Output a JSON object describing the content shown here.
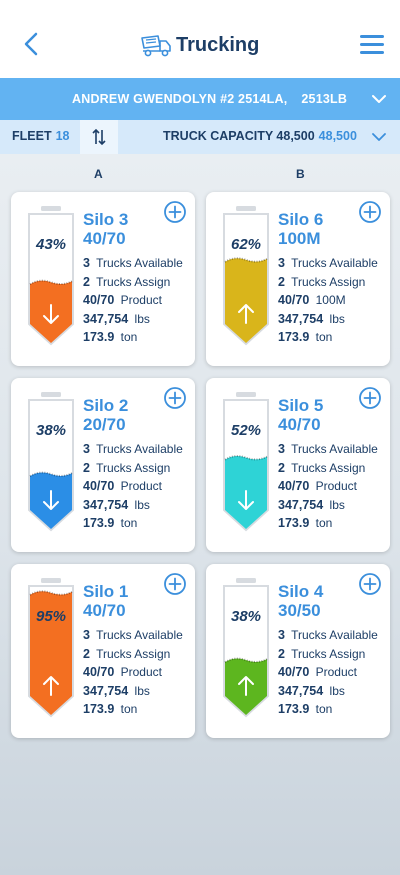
{
  "header": {
    "title": "Trucking"
  },
  "location": {
    "name": "ANDREW GWENDOLYN #2 2514LA,",
    "code": "2513LB"
  },
  "fleet": {
    "label": "FLEET",
    "count": "18"
  },
  "capacity": {
    "label": "TRUCK CAPACITY 48,500",
    "value": "48,500"
  },
  "columns": {
    "a": "A",
    "b": "B"
  },
  "silos": [
    {
      "name": "Silo 3",
      "fill": "40/70",
      "percent": "43%",
      "level": 0.43,
      "color": "#f36f21",
      "direction": "down",
      "trucks_available": "3",
      "trucks_available_label": "Trucks Available",
      "trucks_assign": "2",
      "trucks_assign_label": "Trucks Assign",
      "product": "40/70",
      "product_label": "Product",
      "lbs": "347,754",
      "lbs_unit": "lbs",
      "ton": "173.9",
      "ton_unit": "ton"
    },
    {
      "name": "Silo 6",
      "fill": "100M",
      "percent": "62%",
      "level": 0.62,
      "color": "#d9b51b",
      "direction": "up",
      "trucks_available": "3",
      "trucks_available_label": "Trucks Available",
      "trucks_assign": "2",
      "trucks_assign_label": "Trucks Assign",
      "product": "40/70",
      "product_label": "100M",
      "lbs": "347,754",
      "lbs_unit": "lbs",
      "ton": "173.9",
      "ton_unit": "ton"
    },
    {
      "name": "Silo 2",
      "fill": "20/70",
      "percent": "38%",
      "level": 0.38,
      "color": "#2b8ee6",
      "direction": "down",
      "trucks_available": "3",
      "trucks_available_label": "Trucks Available",
      "trucks_assign": "2",
      "trucks_assign_label": "Trucks Assign",
      "product": "40/70",
      "product_label": "Product",
      "lbs": "347,754",
      "lbs_unit": "lbs",
      "ton": "173.9",
      "ton_unit": "ton"
    },
    {
      "name": "Silo 5",
      "fill": "40/70",
      "percent": "52%",
      "level": 0.52,
      "color": "#2ed3d6",
      "direction": "down",
      "trucks_available": "3",
      "trucks_available_label": "Trucks Available",
      "trucks_assign": "2",
      "trucks_assign_label": "Trucks Assign",
      "product": "40/70",
      "product_label": "Product",
      "lbs": "347,754",
      "lbs_unit": "lbs",
      "ton": "173.9",
      "ton_unit": "ton"
    },
    {
      "name": "Silo 1",
      "fill": "40/70",
      "percent": "95%",
      "level": 0.95,
      "color": "#f36f21",
      "direction": "up",
      "trucks_available": "3",
      "trucks_available_label": "Trucks Available",
      "trucks_assign": "2",
      "trucks_assign_label": "Trucks Assign",
      "product": "40/70",
      "product_label": "Product",
      "lbs": "347,754",
      "lbs_unit": "lbs",
      "ton": "173.9",
      "ton_unit": "ton"
    },
    {
      "name": "Silo 4",
      "fill": "30/50",
      "percent": "38%",
      "level": 0.38,
      "color": "#5db61f",
      "direction": "up",
      "trucks_available": "3",
      "trucks_available_label": "Trucks Available",
      "trucks_assign": "2",
      "trucks_assign_label": "Trucks Assign",
      "product": "40/70",
      "product_label": "Product",
      "lbs": "347,754",
      "lbs_unit": "lbs",
      "ton": "173.9",
      "ton_unit": "ton"
    }
  ],
  "colors": {
    "accent": "#3b8fdc",
    "location_bar": "#62b3f2",
    "fleet_bar": "#d6e9fa",
    "dark_text": "#1d3e66"
  }
}
